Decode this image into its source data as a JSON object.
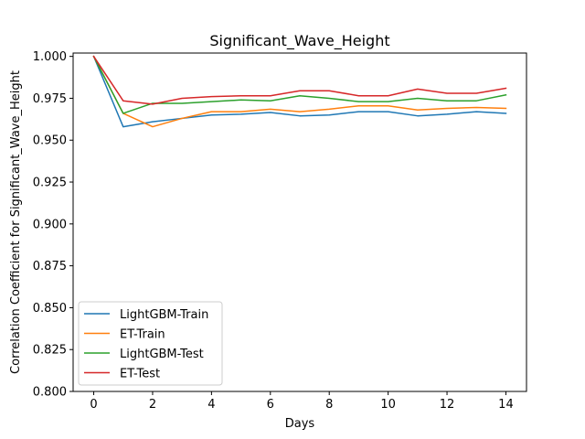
{
  "chart_data": {
    "type": "line",
    "title": "Significant_Wave_Height",
    "xlabel": "Days",
    "ylabel": "Correlation Coefficient for Significant_Wave_Height",
    "xlim": [
      -0.7,
      14.7
    ],
    "ylim": [
      0.8,
      1.002
    ],
    "xticks": [
      0,
      2,
      4,
      6,
      8,
      10,
      12,
      14
    ],
    "yticks": [
      0.8,
      0.825,
      0.85,
      0.875,
      0.9,
      0.925,
      0.95,
      0.975,
      1.0
    ],
    "ytick_labels": [
      "0.800",
      "0.825",
      "0.850",
      "0.875",
      "0.900",
      "0.925",
      "0.950",
      "0.975",
      "1.000"
    ],
    "xtick_labels": [
      "0",
      "2",
      "4",
      "6",
      "8",
      "10",
      "12",
      "14"
    ],
    "legend_position": "lower-left",
    "x": [
      0,
      1,
      2,
      3,
      4,
      5,
      6,
      7,
      8,
      9,
      10,
      11,
      12,
      13,
      14
    ],
    "series": [
      {
        "name": "LightGBM-Train",
        "color": "#1f77b4",
        "values": [
          1.0,
          0.958,
          0.961,
          0.963,
          0.965,
          0.9655,
          0.9665,
          0.9645,
          0.965,
          0.967,
          0.967,
          0.9645,
          0.9655,
          0.967,
          0.966
        ]
      },
      {
        "name": "ET-Train",
        "color": "#ff7f0e",
        "values": [
          1.0,
          0.966,
          0.958,
          0.963,
          0.967,
          0.967,
          0.9685,
          0.967,
          0.9685,
          0.9705,
          0.9705,
          0.968,
          0.969,
          0.9695,
          0.969
        ]
      },
      {
        "name": "LightGBM-Test",
        "color": "#2ca02c",
        "values": [
          1.0,
          0.966,
          0.972,
          0.972,
          0.973,
          0.974,
          0.9735,
          0.9765,
          0.975,
          0.973,
          0.973,
          0.975,
          0.9735,
          0.9735,
          0.977
        ]
      },
      {
        "name": "ET-Test",
        "color": "#d62728",
        "values": [
          1.0,
          0.9735,
          0.9715,
          0.975,
          0.976,
          0.9765,
          0.9765,
          0.9795,
          0.9795,
          0.9765,
          0.9765,
          0.9805,
          0.978,
          0.978,
          0.981
        ]
      }
    ]
  }
}
